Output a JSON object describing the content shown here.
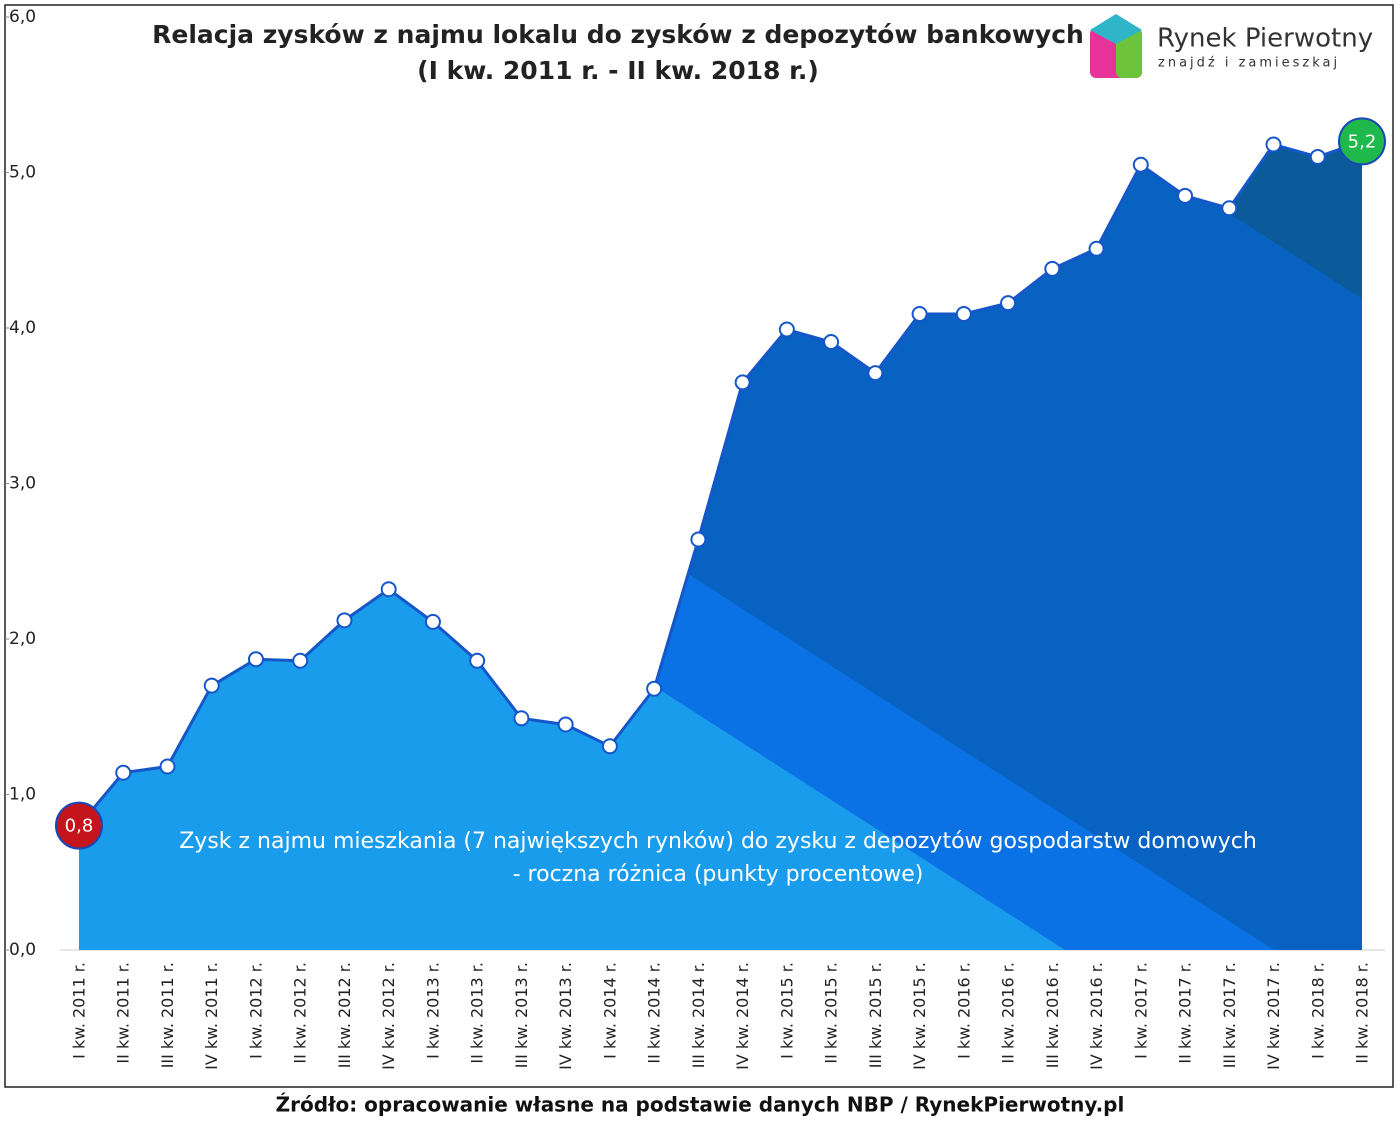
{
  "chart_data": {
    "type": "area",
    "title": "Relacja zysków z najmu lokalu do zysków z depozytów bankowych",
    "subtitle": "(I kw. 2011 r. - II kw. 2018 r.)",
    "logo": {
      "name": "Rynek Pierwotny",
      "tagline": "znajdź i zamieszkaj"
    },
    "annotation": [
      "Zysk z najmu mieszkania (7 największych rynków) do zysku z depozytów gospodarstw domowych",
      "- roczna różnica (punkty procentowe)"
    ],
    "source": "Źródło: opracowanie własne na podstawie danych NBP / RynekPierwotny.pl",
    "categories": [
      "I kw. 2011 r.",
      "II kw. 2011 r.",
      "III kw. 2011 r.",
      "IV kw. 2011 r.",
      "I kw. 2012 r.",
      "II kw. 2012 r.",
      "III kw. 2012 r.",
      "IV kw. 2012 r.",
      "I kw. 2013 r.",
      "II kw. 2013 r.",
      "III kw. 2013 r.",
      "IV kw. 2013 r.",
      "I kw. 2014 r.",
      "II kw. 2014 r.",
      "III kw. 2014 r.",
      "IV kw. 2014 r.",
      "I kw. 2015 r.",
      "II kw. 2015 r.",
      "III kw. 2015 r.",
      "IV kw. 2015 r.",
      "I kw. 2016 r.",
      "II kw. 2016 r.",
      "III kw. 2016 r.",
      "IV kw. 2016 r.",
      "I kw. 2017 r.",
      "II kw. 2017 r.",
      "III kw. 2017 r.",
      "IV kw. 2017 r.",
      "I kw. 2018 r.",
      "II kw. 2018 r."
    ],
    "values": [
      0.8,
      1.14,
      1.18,
      1.7,
      1.87,
      1.86,
      2.12,
      2.32,
      2.11,
      1.86,
      1.49,
      1.45,
      1.31,
      1.68,
      2.64,
      3.65,
      3.99,
      3.91,
      3.71,
      4.09,
      4.09,
      4.16,
      4.38,
      4.51,
      5.05,
      4.85,
      4.77,
      5.18,
      5.1,
      5.2
    ],
    "value_labels": [
      "0,8",
      null,
      null,
      null,
      null,
      null,
      null,
      null,
      null,
      null,
      null,
      null,
      null,
      null,
      null,
      null,
      null,
      null,
      null,
      null,
      null,
      null,
      null,
      null,
      null,
      null,
      null,
      null,
      null,
      "5,2"
    ],
    "color": "#1556c8",
    "ylim": [
      0,
      6
    ],
    "yticks": [
      {
        "value": 0,
        "label": "0,0"
      },
      {
        "value": 1,
        "label": "1,0"
      },
      {
        "value": 2,
        "label": "2,0"
      },
      {
        "value": 3,
        "label": "3,0"
      },
      {
        "value": 4,
        "label": "4,0"
      },
      {
        "value": 5,
        "label": "5,0"
      },
      {
        "value": 6,
        "label": "6,0"
      }
    ],
    "grid": false
  }
}
